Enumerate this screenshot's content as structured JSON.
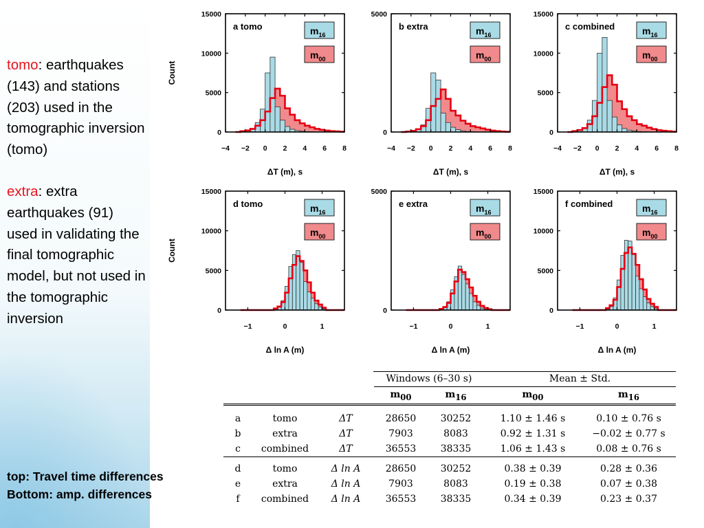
{
  "sidebar": {
    "tomo_key": "tomo",
    "tomo_text": ":\nearthquakes (143) and stations (203) used in the tomographic inversion (tomo)",
    "extra_key": "extra",
    "extra_text": ": extra earthquakes (91) used in validating the final tomographic model, but not used in the tomographic inversion",
    "bottom_line1": "top: Travel time differences",
    "bottom_line2": "Bottom: amp. differences"
  },
  "colors": {
    "m16_fill": "#a9dbe6",
    "m00_line": "#e60012",
    "m00_fill": "#f08a8c",
    "accent_text": "#e8131b"
  },
  "chart_data": [
    {
      "panel": "a",
      "type": "bar",
      "title": "a  tomo",
      "ylabel": "Count",
      "xlabel": "ΔT (m), s",
      "xlim": [
        -4,
        8
      ],
      "ylim": [
        0,
        15000
      ],
      "yticks": [
        "0",
        "5000",
        "10000",
        "15000"
      ],
      "xticks": [
        "−4",
        "−2",
        "0",
        "2",
        "4",
        "6",
        "8"
      ],
      "legend": [
        "m16",
        "m00"
      ],
      "bins": [
        -3,
        -2.5,
        -2,
        -1.5,
        -1,
        -0.5,
        0,
        0.5,
        1,
        1.5,
        2,
        2.5,
        3,
        3.5,
        4,
        4.5,
        5,
        5.5,
        6,
        6.5,
        7,
        7.5
      ],
      "series": [
        {
          "name": "m16",
          "values": [
            0,
            50,
            150,
            450,
            1200,
            2900,
            7500,
            9500,
            3200,
            1500,
            700,
            350,
            180,
            100,
            50,
            30,
            0,
            0,
            0,
            0,
            0,
            0
          ]
        },
        {
          "name": "m00",
          "values": [
            0,
            100,
            200,
            400,
            800,
            1500,
            2600,
            4300,
            5500,
            4600,
            3000,
            2200,
            1500,
            1100,
            800,
            600,
            400,
            280,
            180,
            120,
            80,
            40
          ]
        }
      ]
    },
    {
      "panel": "b",
      "type": "bar",
      "title": "b  extra",
      "ylabel": "",
      "xlabel": "ΔT (m), s",
      "xlim": [
        -4,
        8
      ],
      "ylim": [
        0,
        5000
      ],
      "yticks": [
        "0",
        "5000"
      ],
      "xticks": [
        "−4",
        "−2",
        "0",
        "2",
        "4",
        "6",
        "8"
      ],
      "legend": [
        "m16",
        "m00"
      ],
      "bins": [
        -3,
        -2.5,
        -2,
        -1.5,
        -1,
        -0.5,
        0,
        0.5,
        1,
        1.5,
        2,
        2.5,
        3,
        3.5,
        4,
        4.5,
        5,
        5.5,
        6,
        6.5,
        7,
        7.5
      ],
      "series": [
        {
          "name": "m16",
          "values": [
            0,
            10,
            40,
            100,
            300,
            1000,
            2500,
            2200,
            800,
            400,
            200,
            100,
            50,
            20,
            10,
            0,
            0,
            0,
            0,
            0,
            0,
            0
          ]
        },
        {
          "name": "m00",
          "values": [
            0,
            20,
            50,
            120,
            250,
            500,
            1100,
            1400,
            1800,
            1400,
            900,
            700,
            480,
            350,
            250,
            200,
            150,
            100,
            60,
            40,
            20,
            10
          ]
        }
      ]
    },
    {
      "panel": "c",
      "type": "bar",
      "title": "c  combined",
      "ylabel": "",
      "xlabel": "ΔT (m), s",
      "xlim": [
        -4,
        8
      ],
      "ylim": [
        0,
        15000
      ],
      "yticks": [
        "0",
        "5000",
        "10000",
        "15000"
      ],
      "xticks": [
        "−4",
        "−2",
        "0",
        "2",
        "4",
        "6",
        "8"
      ],
      "legend": [
        "m16",
        "m00"
      ],
      "bins": [
        -3,
        -2.5,
        -2,
        -1.5,
        -1,
        -0.5,
        0,
        0.5,
        1,
        1.5,
        2,
        2.5,
        3,
        3.5,
        4,
        4.5,
        5,
        5.5,
        6,
        6.5,
        7,
        7.5
      ],
      "series": [
        {
          "name": "m16",
          "values": [
            0,
            80,
            200,
            500,
            1500,
            4000,
            10000,
            12000,
            4000,
            1900,
            900,
            450,
            230,
            120,
            60,
            40,
            0,
            0,
            0,
            0,
            0,
            0
          ]
        },
        {
          "name": "m00",
          "values": [
            0,
            120,
            250,
            500,
            1000,
            2000,
            3700,
            5700,
            7200,
            6000,
            3900,
            2900,
            2000,
            1500,
            1000,
            800,
            550,
            380,
            240,
            160,
            100,
            50
          ]
        }
      ]
    },
    {
      "panel": "d",
      "type": "bar",
      "title": "d  tomo",
      "ylabel": "Count",
      "xlabel": "Δ ln A (m)",
      "xlim": [
        -1.6,
        1.6
      ],
      "ylim": [
        0,
        15000
      ],
      "yticks": [
        "0",
        "5000",
        "10000",
        "15000"
      ],
      "xticks": [
        "−1",
        "0",
        "1"
      ],
      "legend": [
        "m16",
        "m00"
      ],
      "bins": [
        -1.2,
        -1.0,
        -0.9,
        -0.8,
        -0.7,
        -0.6,
        -0.5,
        -0.4,
        -0.3,
        -0.2,
        -0.1,
        0,
        0.1,
        0.2,
        0.3,
        0.4,
        0.5,
        0.6,
        0.7,
        0.8,
        0.9,
        1.0,
        1.1,
        1.2,
        1.3,
        1.4
      ],
      "series": [
        {
          "name": "m16",
          "values": [
            0,
            0,
            0,
            0,
            0,
            0,
            0,
            0,
            100,
            350,
            1200,
            3000,
            5500,
            7000,
            7500,
            6000,
            3600,
            2300,
            1500,
            800,
            400,
            150,
            0,
            0,
            0,
            0
          ]
        },
        {
          "name": "m00",
          "values": [
            0,
            0,
            0,
            0,
            0,
            0,
            0,
            0,
            200,
            450,
            1000,
            2200,
            4000,
            5700,
            6800,
            6200,
            5000,
            3500,
            2200,
            1200,
            700,
            300,
            0,
            0,
            0,
            0
          ]
        }
      ]
    },
    {
      "panel": "e",
      "type": "bar",
      "title": "e  extra",
      "ylabel": "",
      "xlabel": "Δ ln A (m)",
      "xlim": [
        -1.6,
        1.6
      ],
      "ylim": [
        0,
        5000
      ],
      "yticks": [
        "0",
        "5000"
      ],
      "xticks": [
        "−1",
        "0",
        "1"
      ],
      "legend": [
        "m16",
        "m00"
      ],
      "bins": [
        -1.2,
        -1.0,
        -0.9,
        -0.8,
        -0.7,
        -0.6,
        -0.5,
        -0.4,
        -0.3,
        -0.2,
        -0.1,
        0,
        0.1,
        0.2,
        0.3,
        0.4,
        0.5,
        0.6,
        0.7,
        0.8,
        0.9,
        1.0,
        1.1,
        1.2,
        1.3,
        1.4
      ],
      "series": [
        {
          "name": "m16",
          "values": [
            0,
            0,
            0,
            0,
            0,
            0,
            0,
            0,
            30,
            100,
            350,
            850,
            1400,
            1850,
            1500,
            1100,
            700,
            350,
            200,
            80,
            30,
            10,
            0,
            0,
            0,
            0
          ]
        },
        {
          "name": "m00",
          "values": [
            0,
            0,
            0,
            0,
            0,
            0,
            0,
            0,
            50,
            130,
            300,
            700,
            1200,
            1700,
            1600,
            1300,
            950,
            600,
            350,
            180,
            90,
            40,
            0,
            0,
            0,
            0
          ]
        }
      ]
    },
    {
      "panel": "f",
      "type": "bar",
      "title": "f  combined",
      "ylabel": "",
      "xlabel": "Δ ln A (m)",
      "xlim": [
        -1.6,
        1.6
      ],
      "ylim": [
        0,
        15000
      ],
      "yticks": [
        "0",
        "5000",
        "10000",
        "15000"
      ],
      "xticks": [
        "−1",
        "0",
        "1"
      ],
      "legend": [
        "m16",
        "m00"
      ],
      "bins": [
        -1.2,
        -1.0,
        -0.9,
        -0.8,
        -0.7,
        -0.6,
        -0.5,
        -0.4,
        -0.3,
        -0.2,
        -0.1,
        0,
        0.1,
        0.2,
        0.3,
        0.4,
        0.5,
        0.6,
        0.7,
        0.8,
        0.9,
        1.0,
        1.1,
        1.2,
        1.3,
        1.4
      ],
      "series": [
        {
          "name": "m16",
          "values": [
            0,
            0,
            0,
            0,
            0,
            0,
            0,
            0,
            120,
            450,
            1550,
            3800,
            6900,
            8800,
            8700,
            7000,
            4300,
            2700,
            1700,
            900,
            450,
            180,
            0,
            0,
            0,
            0
          ]
        },
        {
          "name": "m00",
          "values": [
            0,
            0,
            0,
            0,
            0,
            0,
            0,
            0,
            250,
            600,
            1300,
            2900,
            5200,
            7200,
            7900,
            7100,
            5700,
            3900,
            2600,
            1400,
            800,
            400,
            0,
            0,
            0,
            0
          ]
        }
      ]
    }
  ],
  "table": {
    "group1": "Windows (6–30 s)",
    "group2": "Mean ± Std.",
    "col_m00": "m",
    "col_m00_sub": "00",
    "col_m16": "m",
    "col_m16_sub": "16",
    "rows": [
      {
        "id": "a",
        "set": "tomo",
        "meas": "ΔT",
        "w00": "28650",
        "w16": "30252",
        "mean00": "1.10 ± 1.46 s",
        "mean16": "0.10 ± 0.76 s"
      },
      {
        "id": "b",
        "set": "extra",
        "meas": "ΔT",
        "w00": "7903",
        "w16": "8083",
        "mean00": "0.92 ± 1.31 s",
        "mean16": "−0.02 ± 0.77 s"
      },
      {
        "id": "c",
        "set": "combined",
        "meas": "ΔT",
        "w00": "36553",
        "w16": "38335",
        "mean00": "1.06 ± 1.43 s",
        "mean16": "0.08 ± 0.76 s"
      },
      {
        "id": "d",
        "set": "tomo",
        "meas": "Δ ln A",
        "w00": "28650",
        "w16": "30252",
        "mean00": "0.38 ± 0.39",
        "mean16": "0.28 ± 0.36"
      },
      {
        "id": "e",
        "set": "extra",
        "meas": "Δ ln A",
        "w00": "7903",
        "w16": "8083",
        "mean00": "0.19 ± 0.38",
        "mean16": "0.07 ± 0.38"
      },
      {
        "id": "f",
        "set": "combined",
        "meas": "Δ ln A",
        "w00": "36553",
        "w16": "38335",
        "mean00": "0.34 ± 0.39",
        "mean16": "0.23 ± 0.37"
      }
    ]
  }
}
